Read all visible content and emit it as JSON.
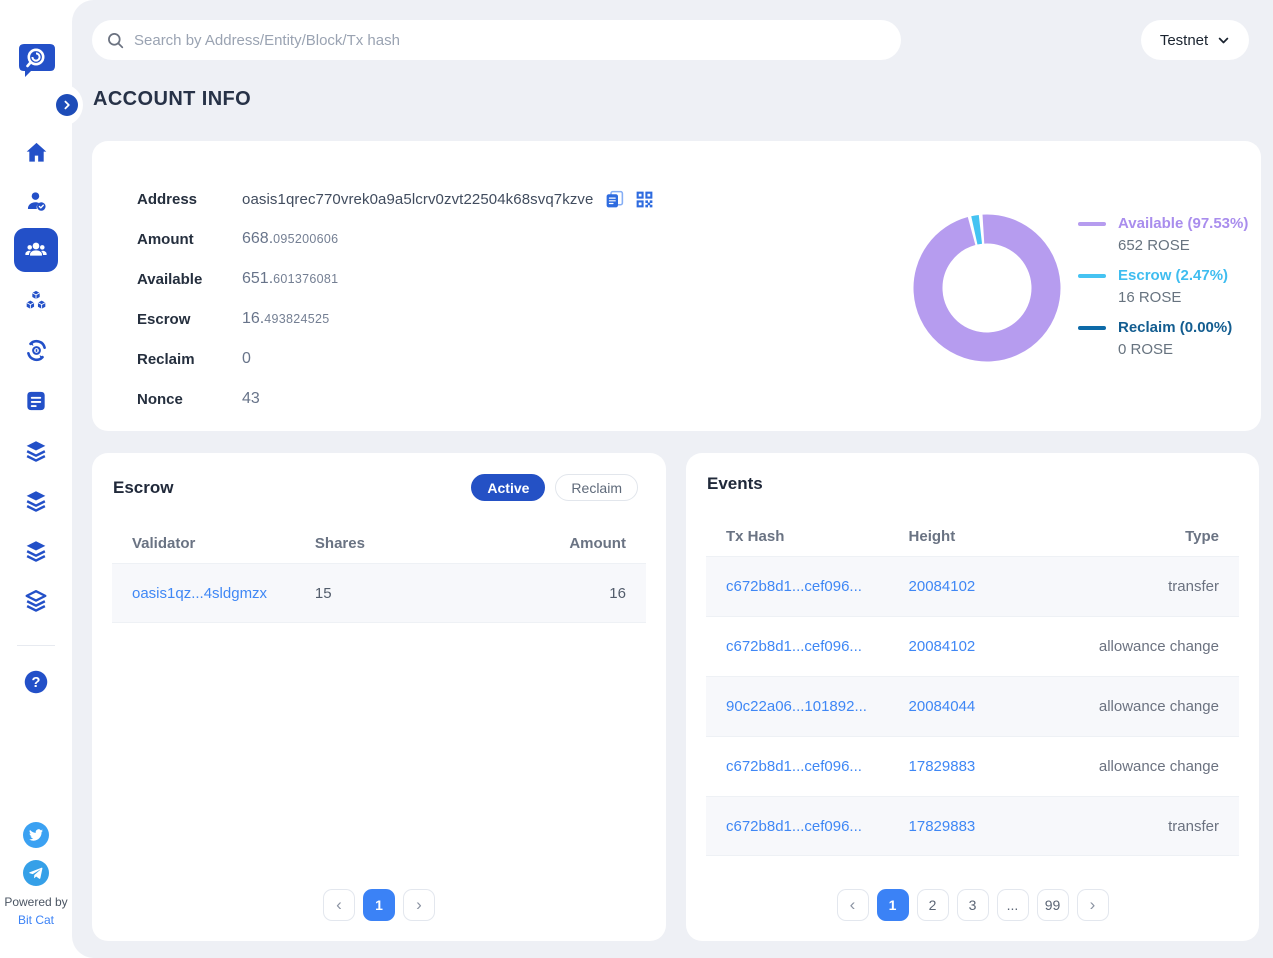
{
  "colors": {
    "sidebar_blue": "#2350c8",
    "link_blue": "#3f87f5",
    "active_page_blue": "#3b82f6",
    "active_tab_blue": "#2451c5",
    "content_background": "#eef0f5"
  },
  "topbar": {
    "search_placeholder": "Search by Address/Entity/Block/Tx hash",
    "network": "Testnet"
  },
  "page_title": "ACCOUNT INFO",
  "account": {
    "labels": {
      "address": "Address",
      "amount": "Amount",
      "available": "Available",
      "escrow": "Escrow",
      "reclaim": "Reclaim",
      "nonce": "Nonce"
    },
    "address": "oasis1qrec770vrek0a9a5lcrv0zvt22504k68svq7kzve",
    "amount_int": "668.",
    "amount_dec": "095200606",
    "available_int": "651.",
    "available_dec": "601376081",
    "escrow_int": "16.",
    "escrow_dec": "493824525",
    "reclaim": "0",
    "nonce": "43"
  },
  "chart_data": {
    "type": "pie",
    "donut": true,
    "legend_position": "right",
    "rotation": -93.5,
    "segments": [
      {
        "label": "Available",
        "pct": 97.53,
        "label_full": "Available (97.53%)",
        "amount_text": "652 ROSE",
        "value_rose": 652,
        "color": "#b69cef",
        "text_color": "#a98ded"
      },
      {
        "label": "Escrow",
        "pct": 2.47,
        "label_full": "Escrow (2.47%)",
        "amount_text": "16 ROSE",
        "value_rose": 16,
        "color": "#45c3f2",
        "text_color": "#3fbdf0"
      },
      {
        "label": "Reclaim",
        "pct": 0.0,
        "label_full": "Reclaim (0.00%)",
        "amount_text": "0 ROSE",
        "value_rose": 0,
        "color": "#0d6aa8",
        "text_color": "#135d90"
      }
    ]
  },
  "escrow_panel": {
    "title": "Escrow",
    "tabs": [
      {
        "label": "Active",
        "active": true
      },
      {
        "label": "Reclaim",
        "active": false
      }
    ],
    "columns": [
      "Validator",
      "Shares",
      "Amount"
    ],
    "rows": [
      {
        "validator": "oasis1qz...4sldgmzx",
        "shares": "15",
        "amount": "16"
      }
    ],
    "pagination": {
      "pages": [
        "1"
      ],
      "active": "1",
      "prev": "‹",
      "next": "›"
    }
  },
  "events_panel": {
    "title": "Events",
    "columns": [
      "Tx Hash",
      "Height",
      "Type"
    ],
    "rows": [
      {
        "tx": "c672b8d1...cef096...",
        "height": "20084102",
        "type": "transfer"
      },
      {
        "tx": "c672b8d1...cef096...",
        "height": "20084102",
        "type": "allowance change"
      },
      {
        "tx": "90c22a06...101892...",
        "height": "20084044",
        "type": "allowance change"
      },
      {
        "tx": "c672b8d1...cef096...",
        "height": "17829883",
        "type": "allowance change"
      },
      {
        "tx": "c672b8d1...cef096...",
        "height": "17829883",
        "type": "transfer"
      }
    ],
    "pagination": {
      "pages": [
        "1",
        "2",
        "3",
        "...",
        "99"
      ],
      "active": "1",
      "prev": "‹",
      "next": "›"
    }
  },
  "sidebar": {
    "logo": "oasisscan-logo",
    "items": [
      {
        "icon": "home-icon",
        "active": false
      },
      {
        "icon": "validator-icon",
        "active": false
      },
      {
        "icon": "accounts-icon",
        "active": true
      },
      {
        "icon": "blocks-icon",
        "active": false
      },
      {
        "icon": "transactions-icon",
        "active": false
      },
      {
        "icon": "proposals-icon",
        "active": false
      },
      {
        "icon": "layers-icon",
        "active": false
      },
      {
        "icon": "layers-icon",
        "active": false
      },
      {
        "icon": "layers-icon",
        "active": false
      },
      {
        "icon": "layers-icon",
        "active": false
      },
      {
        "icon": "help-icon",
        "active": false
      }
    ],
    "social": [
      {
        "icon": "twitter-icon"
      },
      {
        "icon": "telegram-icon"
      }
    ],
    "powered_by": "Powered by",
    "brand": "Bit Cat"
  }
}
